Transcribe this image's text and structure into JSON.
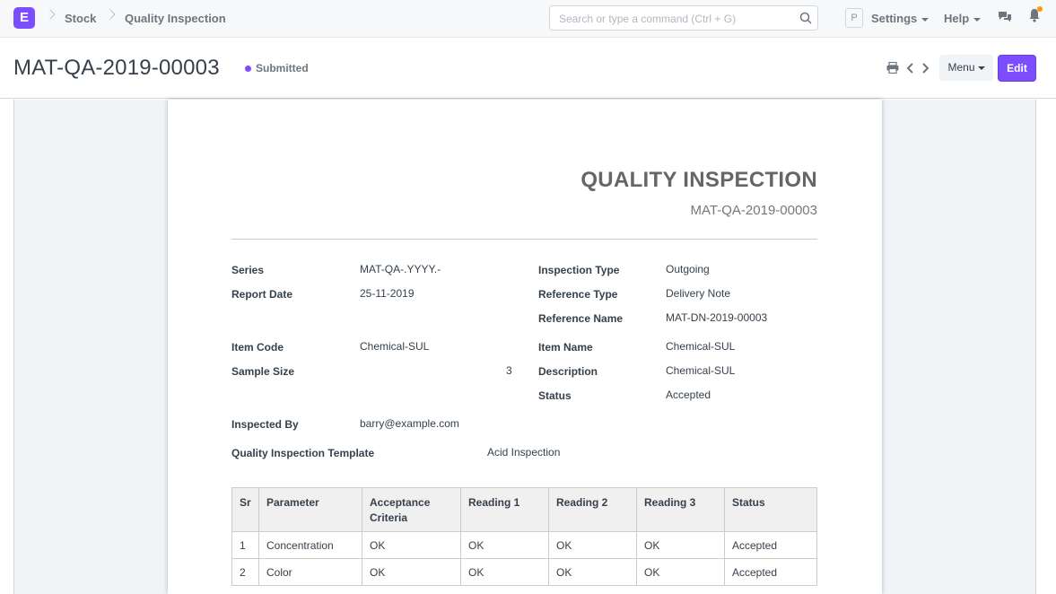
{
  "navbar": {
    "logo": "E",
    "breadcrumbs": [
      "Stock",
      "Quality Inspection"
    ],
    "search_placeholder": "Search or type a command (Ctrl + G)",
    "avatar": "P",
    "settings_label": "Settings",
    "help_label": "Help"
  },
  "page": {
    "title": "MAT-QA-2019-00003",
    "status": "Submitted",
    "menu_label": "Menu",
    "edit_label": "Edit"
  },
  "doc": {
    "heading": "QUALITY INSPECTION",
    "subheading": "MAT-QA-2019-00003",
    "fields": {
      "series": {
        "label": "Series",
        "value": "MAT-QA-.YYYY.-"
      },
      "report_date": {
        "label": "Report Date",
        "value": "25-11-2019"
      },
      "inspection_type": {
        "label": "Inspection Type",
        "value": "Outgoing"
      },
      "reference_type": {
        "label": "Reference Type",
        "value": "Delivery Note"
      },
      "reference_name": {
        "label": "Reference Name",
        "value": "MAT-DN-2019-00003"
      },
      "item_code": {
        "label": "Item Code",
        "value": "Chemical-SUL"
      },
      "sample_size": {
        "label": "Sample Size",
        "value": "3"
      },
      "item_name": {
        "label": "Item Name",
        "value": "Chemical-SUL"
      },
      "description": {
        "label": "Description",
        "value": "Chemical-SUL"
      },
      "status": {
        "label": "Status",
        "value": "Accepted"
      },
      "inspected_by": {
        "label": "Inspected By",
        "value": "barry@example.com"
      },
      "template": {
        "label": "Quality Inspection Template",
        "value": "Acid Inspection"
      }
    },
    "table": {
      "headers": [
        "Sr",
        "Parameter",
        "Acceptance Criteria",
        "Reading 1",
        "Reading 2",
        "Reading 3",
        "Status"
      ],
      "rows": [
        [
          "1",
          "Concentration",
          "OK",
          "OK",
          "OK",
          "OK",
          "Accepted"
        ],
        [
          "2",
          "Color",
          "OK",
          "OK",
          "OK",
          "OK",
          "Accepted"
        ]
      ]
    }
  },
  "colors": {
    "accent": "#7c4dff",
    "notification": "#ff9800"
  }
}
